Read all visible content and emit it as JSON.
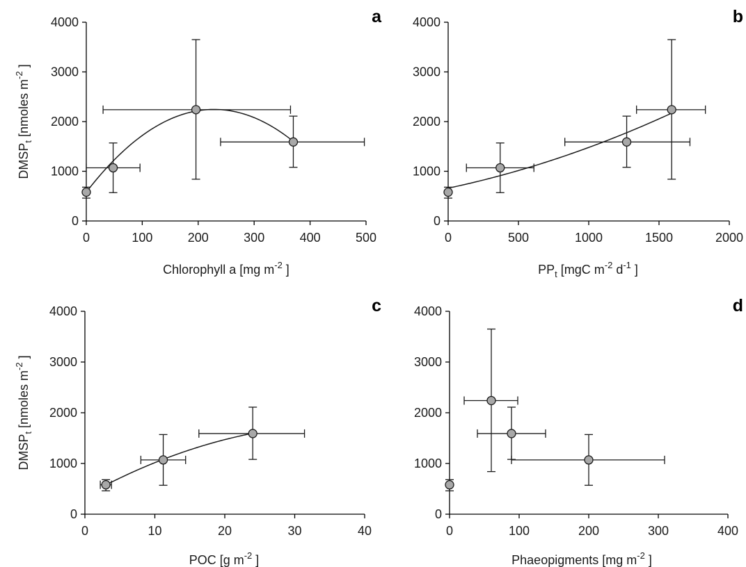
{
  "chart_data": [
    {
      "type": "scatter",
      "panel": "a",
      "ylabel_base": "DMSP",
      "ylabel_sub": "t",
      "ylabel_rest": " [nmoles m",
      "ylabel_sup": "-2",
      "ylabel_end": " ]",
      "xlabel_base": "Chlorophyll a [mg m",
      "xlabel_sup": "-2",
      "xlabel_end": " ]",
      "xlim": [
        0,
        500
      ],
      "ylim": [
        0,
        4000
      ],
      "x_ticks": [
        0,
        100,
        200,
        300,
        400,
        500
      ],
      "y_ticks": [
        0,
        1000,
        2000,
        3000,
        4000
      ],
      "x_tick_labels": [
        "0",
        "100",
        "200",
        "300",
        "400",
        "500"
      ],
      "y_tick_labels": [
        "0",
        "1000",
        "2000",
        "3000",
        "4000"
      ],
      "points": [
        {
          "x": 0,
          "y": 580,
          "xerr": [
            0,
            0
          ],
          "yerr": [
            460,
            680
          ]
        },
        {
          "x": 48,
          "y": 1070,
          "xerr": [
            0,
            96
          ],
          "yerr": [
            570,
            1570
          ]
        },
        {
          "x": 196,
          "y": 2240,
          "xerr": [
            30,
            365
          ],
          "yerr": [
            840,
            3650
          ]
        },
        {
          "x": 370,
          "y": 1590,
          "xerr": [
            240,
            497
          ],
          "yerr": [
            1080,
            2110
          ]
        }
      ],
      "fit": {
        "kind": "poly",
        "coef": [
          580,
          14.6,
          -0.032
        ],
        "x_range": [
          0,
          370
        ]
      }
    },
    {
      "type": "scatter",
      "panel": "b",
      "ylabel_base": "",
      "ylabel_sub": "",
      "ylabel_rest": "",
      "ylabel_sup": "",
      "ylabel_end": "",
      "xlabel_base": "PP",
      "xlabel_sub": "t",
      "xlabel_mid": " [mgC m",
      "xlabel_sup": "-2",
      "xlabel_mid2": " d",
      "xlabel_sup2": "-1",
      "xlabel_end": " ]",
      "xlim": [
        0,
        2000
      ],
      "ylim": [
        0,
        4000
      ],
      "x_ticks": [
        0,
        500,
        1000,
        1500,
        2000
      ],
      "y_ticks": [
        0,
        1000,
        2000,
        3000,
        4000
      ],
      "x_tick_labels": [
        "0",
        "500",
        "1000",
        "1500",
        "2000"
      ],
      "y_tick_labels": [
        "0",
        "1000",
        "2000",
        "3000",
        "4000"
      ],
      "points": [
        {
          "x": 0,
          "y": 580,
          "xerr": [
            0,
            0
          ],
          "yerr": [
            460,
            680
          ]
        },
        {
          "x": 370,
          "y": 1070,
          "xerr": [
            130,
            610
          ],
          "yerr": [
            570,
            1570
          ]
        },
        {
          "x": 1270,
          "y": 1590,
          "xerr": [
            830,
            1720
          ],
          "yerr": [
            1080,
            2110
          ]
        },
        {
          "x": 1590,
          "y": 2240,
          "xerr": [
            1340,
            1830
          ],
          "yerr": [
            840,
            3650
          ]
        }
      ],
      "fit": {
        "kind": "poly",
        "coef": [
          660,
          0.6,
          0.00022
        ],
        "x_range": [
          0,
          1590
        ]
      }
    },
    {
      "type": "scatter",
      "panel": "c",
      "ylabel_base": "DMSP",
      "ylabel_sub": "t",
      "ylabel_rest": " [nmoles m",
      "ylabel_sup": "-2",
      "ylabel_end": " ]",
      "xlabel_base": "POC [g m",
      "xlabel_sup": "-2",
      "xlabel_end": " ]",
      "xlim": [
        0,
        40
      ],
      "ylim": [
        0,
        4000
      ],
      "x_ticks": [
        0,
        10,
        20,
        30,
        40
      ],
      "y_ticks": [
        0,
        1000,
        2000,
        3000,
        4000
      ],
      "x_tick_labels": [
        "0",
        "10",
        "20",
        "30",
        "40"
      ],
      "y_tick_labels": [
        "0",
        "1000",
        "2000",
        "3000",
        "4000"
      ],
      "points": [
        {
          "x": 3,
          "y": 580,
          "xerr": [
            2.2,
            3.8
          ],
          "yerr": [
            460,
            680
          ]
        },
        {
          "x": 11.2,
          "y": 1070,
          "xerr": [
            8,
            14.4
          ],
          "yerr": [
            570,
            1570
          ]
        },
        {
          "x": 24,
          "y": 1590,
          "xerr": [
            16.3,
            31.4
          ],
          "yerr": [
            1080,
            2110
          ]
        }
      ],
      "fit": {
        "kind": "poly",
        "coef": [
          358,
          76,
          -1.02
        ],
        "x_range": [
          3,
          24
        ]
      }
    },
    {
      "type": "scatter",
      "panel": "d",
      "ylabel_base": "",
      "ylabel_sub": "",
      "ylabel_rest": "",
      "ylabel_sup": "",
      "ylabel_end": "",
      "xlabel_base": "Phaeopigments [mg m",
      "xlabel_sup": "-2",
      "xlabel_end": " ]",
      "xlim": [
        0,
        400
      ],
      "ylim": [
        0,
        4000
      ],
      "x_ticks": [
        0,
        100,
        200,
        300,
        400
      ],
      "y_ticks": [
        0,
        1000,
        2000,
        3000,
        4000
      ],
      "x_tick_labels": [
        "0",
        "100",
        "200",
        "300",
        "400"
      ],
      "y_tick_labels": [
        "0",
        "1000",
        "2000",
        "3000",
        "4000"
      ],
      "points": [
        {
          "x": 0,
          "y": 580,
          "xerr": [
            0,
            0
          ],
          "yerr": [
            460,
            680
          ]
        },
        {
          "x": 60,
          "y": 2240,
          "xerr": [
            21,
            98
          ],
          "yerr": [
            840,
            3650
          ]
        },
        {
          "x": 89,
          "y": 1590,
          "xerr": [
            40,
            138
          ],
          "yerr": [
            1080,
            2110
          ]
        },
        {
          "x": 200,
          "y": 1070,
          "xerr": [
            89,
            309
          ],
          "yerr": [
            570,
            1570
          ]
        }
      ],
      "fit": null
    }
  ]
}
